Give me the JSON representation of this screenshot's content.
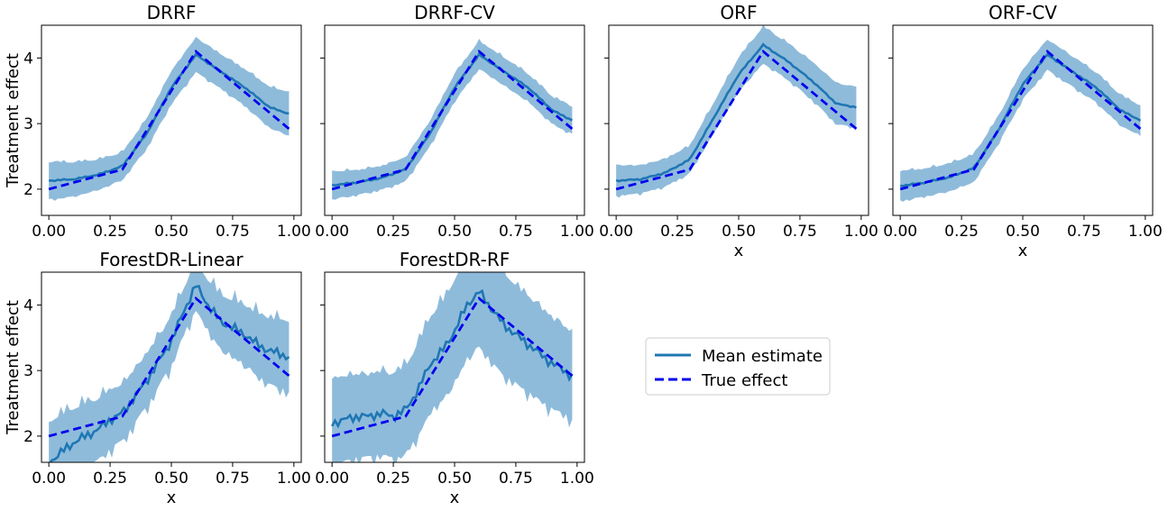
{
  "figure": {
    "legend": {
      "entries": [
        "Mean estimate",
        "True effect"
      ]
    }
  },
  "colors": {
    "mean": "#1f77b4",
    "band": "#8fbbdb",
    "true": "#0000ee"
  },
  "chart_data": [
    {
      "type": "line",
      "title": "DRRF",
      "xlabel": "",
      "ylabel": "Treatment effect",
      "xlim": [
        -0.03,
        1.03
      ],
      "ylim": [
        1.6,
        4.5
      ],
      "xticks": [
        "0.00",
        "0.25",
        "0.50",
        "0.75",
        "1.00"
      ],
      "yticks": [
        "2",
        "3",
        "4"
      ],
      "series": [
        {
          "name": "Mean estimate",
          "x": [
            0,
            0.1,
            0.2,
            0.3,
            0.4,
            0.5,
            0.6,
            0.7,
            0.8,
            0.9,
            0.98
          ],
          "y": [
            2.13,
            2.15,
            2.22,
            2.35,
            2.85,
            3.55,
            4.05,
            3.8,
            3.55,
            3.25,
            3.15
          ],
          "band": [
            0.28,
            0.25,
            0.22,
            0.2,
            0.22,
            0.24,
            0.25,
            0.25,
            0.27,
            0.3,
            0.32
          ]
        },
        {
          "name": "True effect",
          "x": [
            0,
            0.3,
            0.6,
            0.98
          ],
          "y": [
            2.0,
            2.3,
            4.1,
            2.92
          ]
        }
      ]
    },
    {
      "type": "line",
      "title": "DRRF-CV",
      "xlabel": "",
      "ylabel": "",
      "xlim": [
        -0.03,
        1.03
      ],
      "ylim": [
        1.6,
        4.5
      ],
      "xticks": [
        "0.00",
        "0.25",
        "0.50",
        "0.75",
        "1.00"
      ],
      "yticks": [],
      "series": [
        {
          "name": "Mean estimate",
          "x": [
            0,
            0.1,
            0.2,
            0.3,
            0.4,
            0.5,
            0.6,
            0.7,
            0.8,
            0.9,
            0.98
          ],
          "y": [
            2.06,
            2.1,
            2.17,
            2.3,
            2.85,
            3.55,
            4.05,
            3.8,
            3.55,
            3.2,
            3.05
          ],
          "band": [
            0.2,
            0.18,
            0.17,
            0.17,
            0.18,
            0.2,
            0.2,
            0.2,
            0.2,
            0.2,
            0.2
          ]
        },
        {
          "name": "True effect",
          "x": [
            0,
            0.3,
            0.6,
            0.98
          ],
          "y": [
            2.0,
            2.3,
            4.1,
            2.92
          ]
        }
      ]
    },
    {
      "type": "line",
      "title": "ORF",
      "xlabel": "x",
      "ylabel": "",
      "xlim": [
        -0.03,
        1.03
      ],
      "ylim": [
        1.6,
        4.5
      ],
      "xticks": [
        "0.00",
        "0.25",
        "0.50",
        "0.75",
        "1.00"
      ],
      "yticks": [],
      "series": [
        {
          "name": "Mean estimate",
          "x": [
            0,
            0.1,
            0.2,
            0.3,
            0.4,
            0.5,
            0.6,
            0.7,
            0.8,
            0.9,
            0.98
          ],
          "y": [
            2.13,
            2.15,
            2.25,
            2.45,
            3.1,
            3.75,
            4.2,
            3.95,
            3.65,
            3.3,
            3.25
          ],
          "band": [
            0.22,
            0.2,
            0.2,
            0.2,
            0.22,
            0.25,
            0.27,
            0.27,
            0.28,
            0.3,
            0.3
          ]
        },
        {
          "name": "True effect",
          "x": [
            0,
            0.3,
            0.6,
            0.98
          ],
          "y": [
            2.0,
            2.3,
            4.1,
            2.92
          ]
        }
      ]
    },
    {
      "type": "line",
      "title": "ORF-CV",
      "xlabel": "x",
      "ylabel": "",
      "xlim": [
        -0.03,
        1.03
      ],
      "ylim": [
        1.6,
        4.5
      ],
      "xticks": [
        "0.00",
        "0.25",
        "0.50",
        "0.75",
        "1.00"
      ],
      "yticks": [],
      "series": [
        {
          "name": "Mean estimate",
          "x": [
            0,
            0.1,
            0.2,
            0.3,
            0.4,
            0.5,
            0.6,
            0.7,
            0.8,
            0.9,
            0.98
          ],
          "y": [
            2.05,
            2.1,
            2.18,
            2.32,
            2.9,
            3.6,
            4.05,
            3.8,
            3.55,
            3.2,
            3.05
          ],
          "band": [
            0.22,
            0.2,
            0.2,
            0.2,
            0.2,
            0.22,
            0.22,
            0.22,
            0.22,
            0.22,
            0.22
          ]
        },
        {
          "name": "True effect",
          "x": [
            0,
            0.3,
            0.6,
            0.98
          ],
          "y": [
            2.0,
            2.3,
            4.1,
            2.92
          ]
        }
      ]
    },
    {
      "type": "line",
      "title": "ForestDR-Linear",
      "xlabel": "x",
      "ylabel": "Treatment effect",
      "xlim": [
        -0.03,
        1.03
      ],
      "ylim": [
        1.6,
        4.5
      ],
      "xticks": [
        "0.00",
        "0.25",
        "0.50",
        "0.75",
        "1.00"
      ],
      "yticks": [
        "2",
        "3",
        "4"
      ],
      "series": [
        {
          "name": "Mean estimate",
          "x": [
            0,
            0.05,
            0.1,
            0.15,
            0.2,
            0.25,
            0.3,
            0.35,
            0.4,
            0.45,
            0.5,
            0.55,
            0.6,
            0.65,
            0.7,
            0.75,
            0.8,
            0.85,
            0.9,
            0.95,
            0.98
          ],
          "y": [
            1.6,
            1.75,
            1.9,
            2.0,
            2.1,
            2.25,
            2.35,
            2.6,
            2.85,
            3.15,
            3.45,
            3.9,
            4.3,
            4.0,
            3.75,
            3.65,
            3.55,
            3.4,
            3.3,
            3.25,
            3.2
          ],
          "band": [
            0.6,
            0.55,
            0.5,
            0.48,
            0.45,
            0.42,
            0.4,
            0.38,
            0.37,
            0.36,
            0.35,
            0.34,
            0.34,
            0.36,
            0.38,
            0.4,
            0.42,
            0.45,
            0.48,
            0.5,
            0.52
          ]
        },
        {
          "name": "True effect",
          "x": [
            0,
            0.3,
            0.6,
            0.98
          ],
          "y": [
            2.0,
            2.3,
            4.1,
            2.92
          ]
        }
      ]
    },
    {
      "type": "line",
      "title": "ForestDR-RF",
      "xlabel": "x",
      "ylabel": "",
      "xlim": [
        -0.03,
        1.03
      ],
      "ylim": [
        1.6,
        4.5
      ],
      "xticks": [
        "0.00",
        "0.25",
        "0.50",
        "0.75",
        "1.00"
      ],
      "yticks": [],
      "series": [
        {
          "name": "Mean estimate",
          "x": [
            0,
            0.05,
            0.1,
            0.15,
            0.2,
            0.25,
            0.3,
            0.35,
            0.4,
            0.45,
            0.5,
            0.55,
            0.6,
            0.65,
            0.7,
            0.75,
            0.8,
            0.85,
            0.9,
            0.95,
            0.98
          ],
          "y": [
            2.2,
            2.25,
            2.3,
            2.3,
            2.35,
            2.3,
            2.4,
            2.7,
            3.1,
            3.3,
            3.6,
            4.0,
            4.2,
            3.95,
            3.7,
            3.55,
            3.4,
            3.25,
            3.1,
            3.0,
            2.9
          ],
          "band": [
            0.65,
            0.62,
            0.6,
            0.6,
            0.6,
            0.62,
            0.65,
            0.68,
            0.7,
            0.72,
            0.75,
            0.78,
            0.8,
            0.78,
            0.75,
            0.72,
            0.7,
            0.68,
            0.66,
            0.64,
            0.62
          ]
        },
        {
          "name": "True effect",
          "x": [
            0,
            0.3,
            0.6,
            0.98
          ],
          "y": [
            2.0,
            2.3,
            4.1,
            2.92
          ]
        }
      ]
    }
  ]
}
